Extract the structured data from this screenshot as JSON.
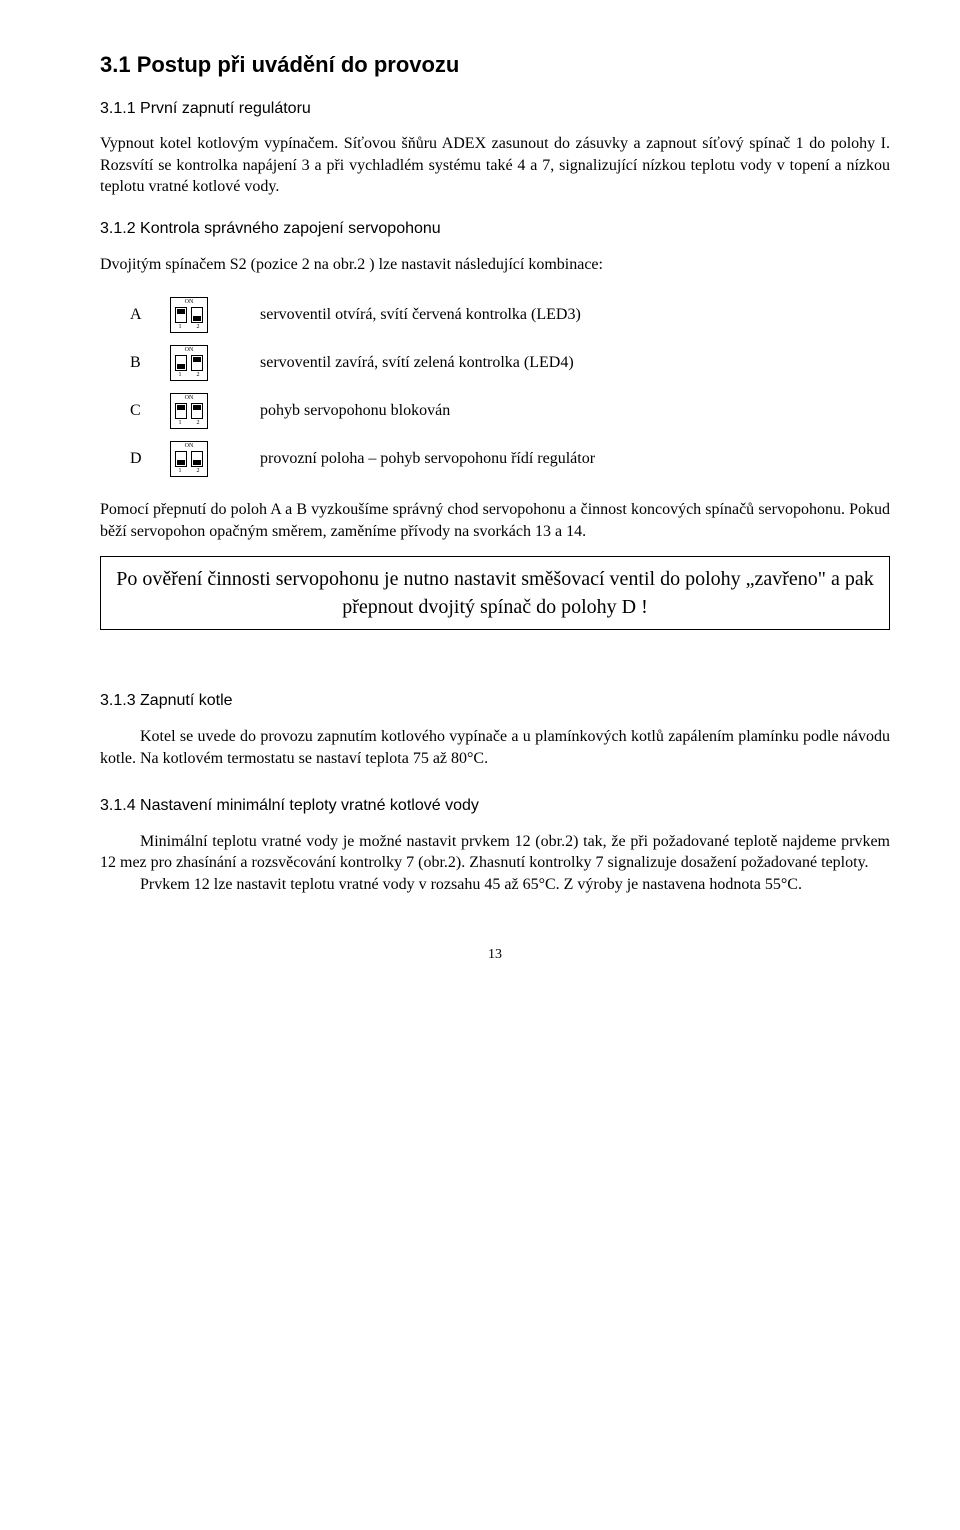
{
  "s31": {
    "heading": "3.1  Postup při uvádění do provozu",
    "sub311": "3.1.1  První zapnutí regulátoru",
    "p1": "Vypnout kotel kotlovým vypínačem. Síťovou šňůru ADEX zasunout do zásuvky a zapnout síťový spínač 1 do polohy I. Rozsvítí se kontrolka napájení 3 a při vychladlém systému také 4 a 7, signalizující nízkou teplotu vody v topení a nízkou teplotu vratné kotlové vody.",
    "sub312": "3.1.2  Kontrola správného zapojení servopohonu",
    "p2": "Dvojitým spínačem S2 (pozice 2 na obr.2 ) lze nastavit následující kombinace:",
    "switches": [
      {
        "letter": "A",
        "pos": [
          "up",
          "down"
        ],
        "desc": "servoventil otvírá, svítí červená kontrolka (LED3)"
      },
      {
        "letter": "B",
        "pos": [
          "down",
          "up"
        ],
        "desc": "servoventil zavírá, svítí zelená kontrolka (LED4)"
      },
      {
        "letter": "C",
        "pos": [
          "up",
          "up"
        ],
        "desc": "pohyb servopohonu blokován"
      },
      {
        "letter": "D",
        "pos": [
          "down",
          "down"
        ],
        "desc": "provozní poloha – pohyb servopohonu řídí regulátor"
      }
    ],
    "dip_on_label": "ON",
    "dip_num1": "1",
    "dip_num2": "2",
    "p3": "Pomocí přepnutí do poloh A a B vyzkoušíme správný chod servopohonu a činnost koncových spínačů servopohonu. Pokud běží servopohon opačným směrem, zaměníme přívody na svorkách 13 a 14.",
    "note": "Po ověření činnosti servopohonu je nutno nastavit směšovací ventil do polohy  „zavřeno\"  a pak přepnout dvojitý spínač do polohy D !",
    "sub313": "3.1.3  Zapnutí kotle",
    "p4": "Kotel se uvede do provozu zapnutím kotlového vypínače a u plamínkových kotlů zapálením plamínku podle návodu kotle. Na kotlovém termostatu se nastaví teplota 75 až 80°C.",
    "sub314": "3.1.4  Nastavení minimální teploty vratné kotlové vody",
    "p5": "Minimální teplotu vratné vody je možné nastavit prvkem 12 (obr.2) tak, že při požadované teplotě najdeme prvkem 12 mez pro zhasínání a rozsvěcování kontrolky 7 (obr.2). Zhasnutí kontrolky 7 signalizuje dosažení požadované teploty.",
    "p6": "Prvkem 12 lze nastavit teplotu vratné vody v rozsahu 45 až 65°C. Z výroby je nastavena hodnota 55°C."
  },
  "page_number": "13"
}
